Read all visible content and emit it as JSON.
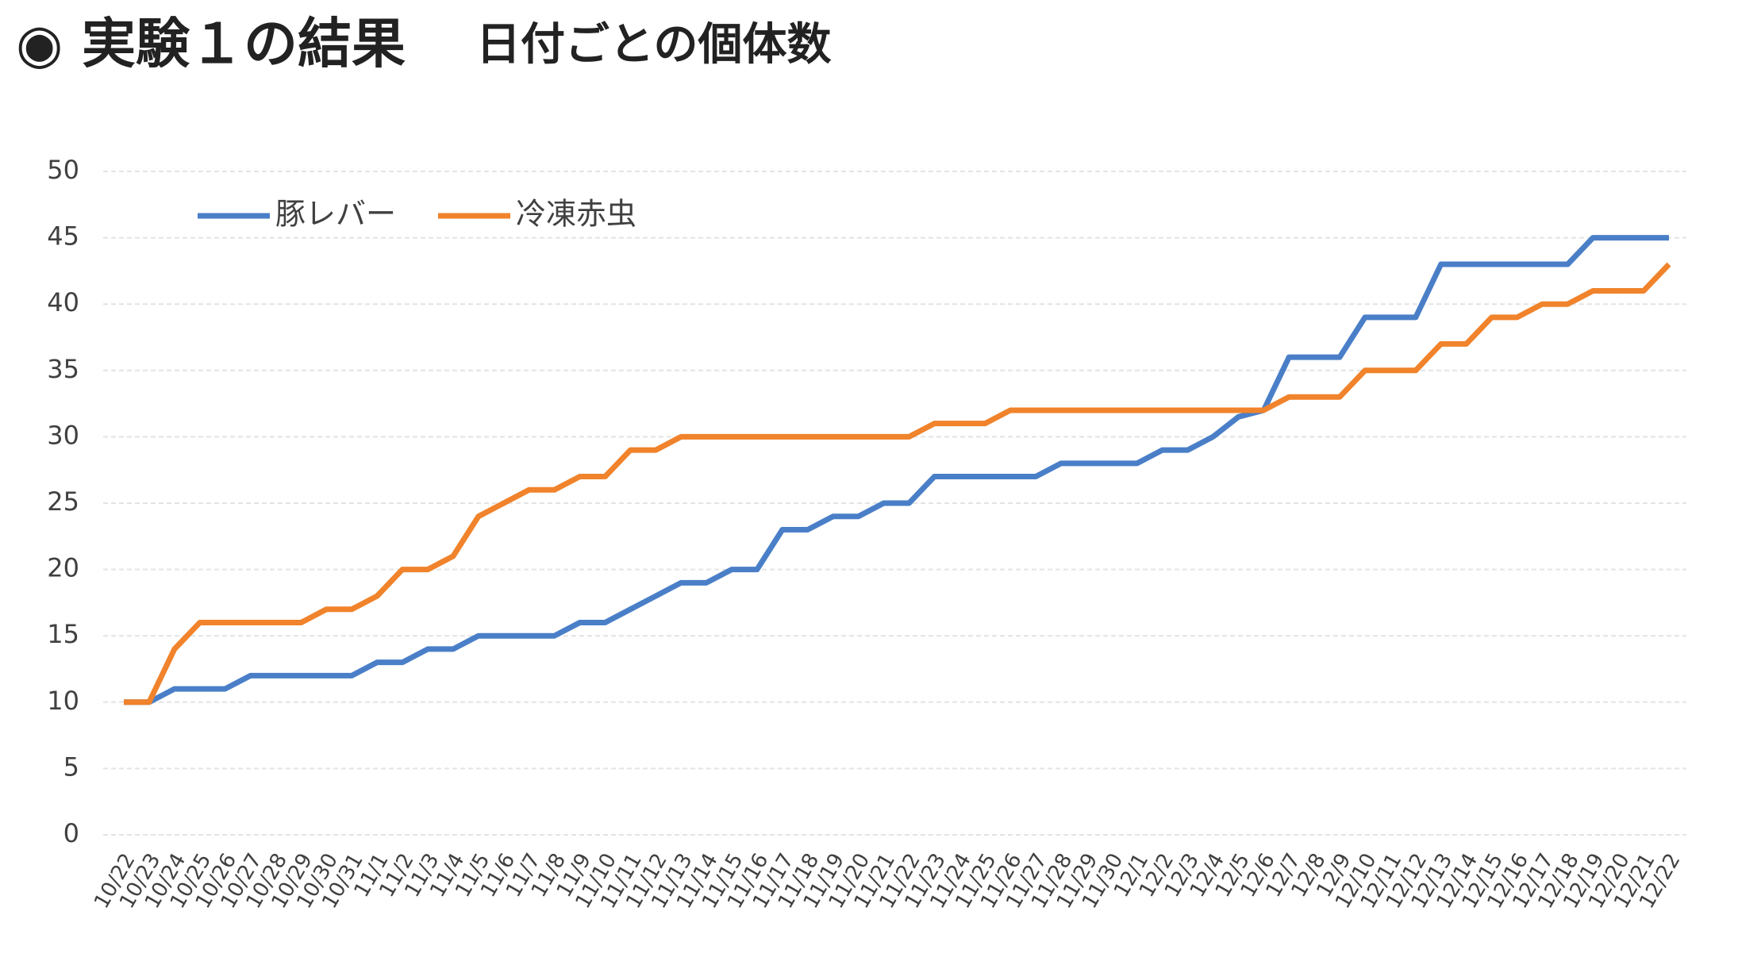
{
  "chart_data": {
    "type": "line",
    "title": "◉ 実験１の結果",
    "subtitle": "日付ごとの個体数",
    "categories": [
      "10/22",
      "10/23",
      "10/24",
      "10/25",
      "10/26",
      "10/27",
      "10/28",
      "10/29",
      "10/30",
      "10/31",
      "11/1",
      "11/2",
      "11/3",
      "11/4",
      "11/5",
      "11/6",
      "11/7",
      "11/8",
      "11/9",
      "11/10",
      "11/11",
      "11/12",
      "11/13",
      "11/14",
      "11/15",
      "11/16",
      "11/17",
      "11/18",
      "11/19",
      "11/20",
      "11/21",
      "11/22",
      "11/23",
      "11/24",
      "11/25",
      "11/26",
      "11/27",
      "11/28",
      "11/29",
      "11/30",
      "12/1",
      "12/2",
      "12/3",
      "12/4",
      "12/5",
      "12/6",
      "12/7",
      "12/8",
      "12/9",
      "12/10",
      "12/11",
      "12/12",
      "12/13",
      "12/14",
      "12/15",
      "12/16",
      "12/17",
      "12/18",
      "12/19",
      "12/20",
      "12/21",
      "12/22"
    ],
    "series": [
      {
        "name": "豚レバー",
        "color": "#4a7fc8",
        "values": [
          10,
          10,
          11,
          11,
          11,
          12,
          12,
          12,
          12,
          12,
          13,
          13,
          14,
          14,
          15,
          15,
          15,
          15,
          16,
          16,
          17,
          18,
          19,
          19,
          20,
          20,
          23,
          23,
          24,
          24,
          25,
          25,
          27,
          27,
          27,
          27,
          27,
          28,
          28,
          28,
          28,
          29,
          29,
          30,
          31.5,
          32,
          36,
          36,
          36,
          39,
          39,
          39,
          43,
          43,
          43,
          43,
          43,
          43,
          45,
          45,
          45,
          45
        ]
      },
      {
        "name": "冷凍赤虫",
        "color": "#f0832b",
        "values": [
          10,
          10,
          14,
          16,
          16,
          16,
          16,
          16,
          17,
          17,
          18,
          20,
          20,
          21,
          24,
          25,
          26,
          26,
          27,
          27,
          29,
          29,
          30,
          30,
          30,
          30,
          30,
          30,
          30,
          30,
          30,
          30,
          31,
          31,
          31,
          32,
          32,
          32,
          32,
          32,
          32,
          32,
          32,
          32,
          32,
          32,
          33,
          33,
          33,
          35,
          35,
          35,
          37,
          37,
          39,
          39,
          40,
          40,
          41,
          41,
          41,
          43
        ]
      }
    ],
    "ylim": [
      0,
      50
    ],
    "yticks": [
      0,
      5,
      10,
      15,
      20,
      25,
      30,
      35,
      40,
      45,
      50
    ],
    "grid": true,
    "legend": "top-left"
  }
}
